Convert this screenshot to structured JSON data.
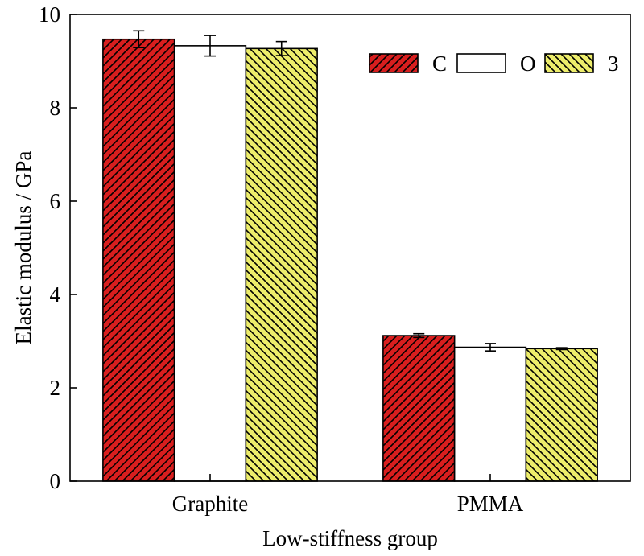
{
  "chart_data": {
    "type": "bar",
    "categories": [
      "Graphite",
      "PMMA"
    ],
    "series": [
      {
        "name": "C",
        "values": [
          9.47,
          3.12
        ],
        "errors": [
          0.18,
          0.04
        ],
        "color": "#d81e1e",
        "hatch": "dense-back"
      },
      {
        "name": "O",
        "values": [
          9.33,
          2.87
        ],
        "errors": [
          0.22,
          0.08
        ],
        "color": "#ffffff",
        "hatch": "none"
      },
      {
        "name": "3",
        "values": [
          9.27,
          2.84
        ],
        "errors": [
          0.15,
          0.02
        ],
        "color": "#eded6b",
        "hatch": "back"
      }
    ],
    "title": "",
    "xlabel": "Low-stiffness group",
    "ylabel": "Elastic modulus / GPa",
    "ylim": [
      0,
      10
    ],
    "yticks": [
      "0",
      "2",
      "4",
      "6",
      "8",
      "10"
    ],
    "grid": false,
    "legend_position": "top-right"
  }
}
